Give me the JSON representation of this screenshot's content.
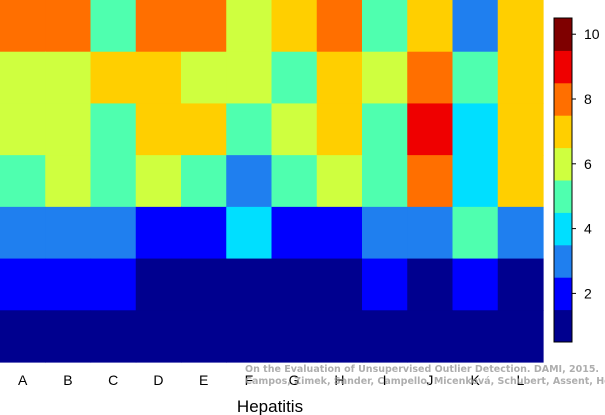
{
  "chart_data": {
    "type": "heatmap",
    "xlabel": "Hepatitis",
    "x_categories": [
      "A",
      "B",
      "C",
      "D",
      "E",
      "F",
      "G",
      "H",
      "I",
      "J",
      "K",
      "L"
    ],
    "rows_top_to_bottom": [
      [
        8,
        8,
        5,
        8,
        8,
        6,
        7,
        8,
        5,
        7,
        3,
        7
      ],
      [
        6,
        6,
        7,
        7,
        6,
        6,
        5,
        7,
        6,
        8,
        5,
        7
      ],
      [
        6,
        6,
        5,
        7,
        7,
        5,
        6,
        7,
        5,
        9,
        4,
        7
      ],
      [
        5,
        6,
        5,
        6,
        5,
        3,
        5,
        6,
        5,
        8,
        4,
        7
      ],
      [
        3,
        3,
        3,
        2,
        2,
        4,
        2,
        2,
        3,
        3,
        5,
        3
      ],
      [
        2,
        2,
        2,
        1,
        1,
        1,
        1,
        1,
        2,
        1,
        2,
        1
      ],
      [
        1,
        1,
        1,
        1,
        1,
        1,
        1,
        1,
        1,
        1,
        1,
        1
      ]
    ],
    "colorbar": {
      "min": 0.5,
      "max": 10.5,
      "ticks": [
        2,
        4,
        6,
        8,
        10
      ],
      "colors": [
        "#00008f",
        "#0000ff",
        "#1f7fef",
        "#00dfff",
        "#4fffaf",
        "#cfff3f",
        "#ffcf00",
        "#ff6f00",
        "#ef0000",
        "#7f0000"
      ]
    },
    "grid": false,
    "legend": "colorbar-right"
  },
  "watermark": {
    "line1": "On the Evaluation of Unsupervised Outlier Detection. DAMI, 2015.",
    "line2": "Campos, Zimek, Sander, Campello, Micenková, Schubert, Assent, Houle"
  }
}
